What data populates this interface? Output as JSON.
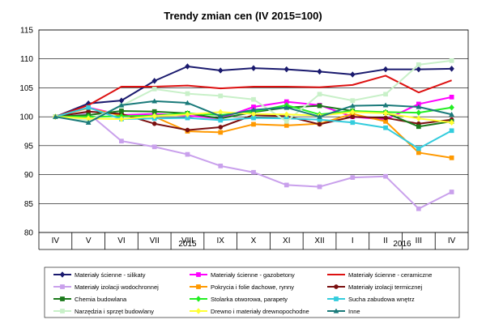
{
  "chart_data": {
    "type": "line",
    "title": "Trendy zmian cen (IV 2015=100)",
    "ylim": [
      80,
      115
    ],
    "yticks": [
      80,
      85,
      90,
      95,
      100,
      105,
      110,
      115
    ],
    "categories": [
      "IV",
      "V",
      "VI",
      "VII",
      "VIII",
      "IX",
      "X",
      "XI",
      "XII",
      "I",
      "II",
      "III",
      "IV"
    ],
    "year_labels": [
      {
        "label": "2015",
        "from": 0,
        "to": 8
      },
      {
        "label": "2016",
        "from": 9,
        "to": 12
      }
    ],
    "grid": true,
    "legend_position": "bottom",
    "series": [
      {
        "name": "Materiały ścienne - silikaty",
        "color": "#1a1a6e",
        "marker": "diamond",
        "values": [
          100,
          102.3,
          102.8,
          106.2,
          108.7,
          108.0,
          108.4,
          108.2,
          107.8,
          107.3,
          108.2,
          108.2,
          108.3
        ]
      },
      {
        "name": "Materiały ścienne - gazobetony",
        "color": "#ff00ff",
        "marker": "square",
        "values": [
          100,
          101.6,
          100.3,
          100.5,
          100.2,
          99.7,
          101.7,
          102.6,
          102.0,
          100.0,
          99.5,
          102.2,
          103.4
        ]
      },
      {
        "name": "Materiały ścienne - ceramiczne",
        "color": "#dd1111",
        "marker": "none",
        "values": [
          100,
          102.0,
          105.2,
          105.2,
          105.4,
          104.9,
          105.2,
          105.2,
          105.1,
          105.5,
          107.1,
          104.2,
          106.3
        ]
      },
      {
        "name": "Materiały izolacji wodochronnej",
        "color": "#c9a0ec",
        "marker": "square",
        "values": [
          100,
          100.6,
          95.8,
          94.8,
          93.5,
          91.5,
          90.4,
          88.2,
          87.9,
          89.5,
          89.7,
          84.1,
          87.0
        ]
      },
      {
        "name": "Pokrycia i folie dachowe, rynny",
        "color": "#ff9900",
        "marker": "square",
        "values": [
          100,
          101.5,
          100.2,
          100.0,
          97.5,
          97.3,
          98.7,
          98.5,
          98.8,
          100.5,
          99.2,
          93.8,
          92.9
        ]
      },
      {
        "name": "Materiały izolacji termicznej",
        "color": "#7a1010",
        "marker": "circle",
        "values": [
          100,
          100.9,
          100.5,
          98.8,
          97.7,
          98.2,
          100.3,
          100.1,
          98.7,
          100.0,
          99.8,
          98.8,
          99.5
        ]
      },
      {
        "name": "Chemia budowlana",
        "color": "#1c7a1c",
        "marker": "square",
        "values": [
          100,
          100.3,
          101.0,
          100.9,
          100.6,
          99.7,
          100.8,
          101.6,
          101.9,
          101.0,
          100.7,
          98.3,
          99.2
        ]
      },
      {
        "name": "Stolarka otworowa, parapety",
        "color": "#22ee22",
        "marker": "diamond",
        "values": [
          100,
          100.0,
          100.1,
          100.2,
          100.6,
          100.3,
          100.9,
          102.0,
          100.4,
          101.0,
          100.8,
          100.7,
          101.6
        ]
      },
      {
        "name": "Sucha zabudowa wnętrz",
        "color": "#33ccdd",
        "marker": "square",
        "values": [
          100,
          101.6,
          99.6,
          99.7,
          99.8,
          99.4,
          99.8,
          99.7,
          99.5,
          99.0,
          98.1,
          94.5,
          97.6
        ]
      },
      {
        "name": "Narzędzia i sprzęt budowlany",
        "color": "#c8f0c8",
        "marker": "square",
        "values": [
          100,
          99.4,
          101.9,
          104.8,
          104.0,
          103.6,
          103.0,
          99.2,
          103.9,
          102.8,
          103.9,
          109.0,
          109.7
        ]
      },
      {
        "name": "Drewno i materiały drewnopochodne",
        "color": "#ffff33",
        "marker": "diamond",
        "values": [
          100,
          99.7,
          99.6,
          100.1,
          100.4,
          100.8,
          100.5,
          100.4,
          100.2,
          100.8,
          100.6,
          99.7,
          99.0
        ]
      },
      {
        "name": "Inne",
        "color": "#1a7a7a",
        "marker": "triangle",
        "values": [
          100,
          99.0,
          102.0,
          102.7,
          102.4,
          100.1,
          101.2,
          101.6,
          100.0,
          101.9,
          102.0,
          101.7,
          100.4
        ]
      }
    ]
  }
}
